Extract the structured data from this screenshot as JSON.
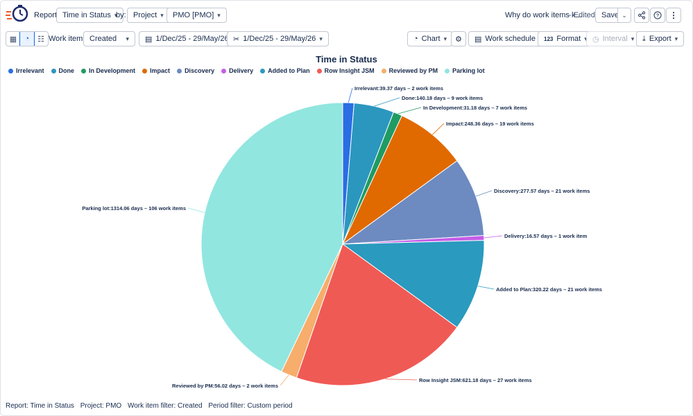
{
  "header": {
    "report_label": "Report:",
    "report_value": "Time in Status",
    "by_label": "by:",
    "by_value": "Project",
    "project_value": "PMO [PMO]",
    "doc_title": "Why do work items k...",
    "edited": "- Edited",
    "save_label": "Save"
  },
  "toolbar": {
    "work_items_label": "Work items:",
    "work_items_value": "Created",
    "date_range_1": "1/Dec/25 - 29/May/26",
    "date_range_2": "1/Dec/25 - 29/May/26",
    "chart_label": "Chart",
    "work_schedule_label": "Work schedule",
    "format_label": "Format",
    "interval_label": "Interval",
    "export_label": "Export"
  },
  "colors": {
    "accent": "#0c66e4",
    "Irrelevant": "#2a6ee3",
    "Done": "#2b97bf",
    "In Development": "#1f9b63",
    "Impact": "#e06a00",
    "Discovery": "#6d8bc1",
    "Delivery": "#c55de8",
    "Added to Plan": "#2a9abf",
    "Row Insight JSM": "#f05a55",
    "Reviewed by PM": "#f7ad6b",
    "Parking lot": "#92e6e0"
  },
  "chart_data": {
    "type": "pie",
    "title": "Time in Status",
    "legend_position": "top-left",
    "categories": [
      "Irrelevant",
      "Done",
      "In Development",
      "Impact",
      "Discovery",
      "Delivery",
      "Added to Plan",
      "Row Insight JSM",
      "Reviewed by PM",
      "Parking lot"
    ],
    "values": [
      39.37,
      140.18,
      31.18,
      248.36,
      277.57,
      16.57,
      320.22,
      621.18,
      56.02,
      1314.06
    ],
    "work_items": [
      2,
      9,
      7,
      19,
      21,
      1,
      21,
      27,
      2,
      106
    ],
    "data_labels": [
      "Irrelevant:39.37 days – 2 work items",
      "Done:140.18 days – 9 work items",
      "In Development:31.18 days – 7 work items",
      "Impact:248.36 days – 19 work items",
      "Discovery:277.57 days – 21 work items",
      "Delivery:16.57 days – 1 work item",
      "Added to Plan:320.22 days – 21 work items",
      "Row Insight JSM:621.18 days – 27 work items",
      "Reviewed by PM:56.02 days – 2 work items",
      "Parking lot:1314.06 days – 106 work items"
    ]
  },
  "footer": {
    "report": "Report: Time in Status",
    "project": "Project: PMO",
    "filter": "Work item filter: Created",
    "period": "Period filter: Custom period"
  }
}
